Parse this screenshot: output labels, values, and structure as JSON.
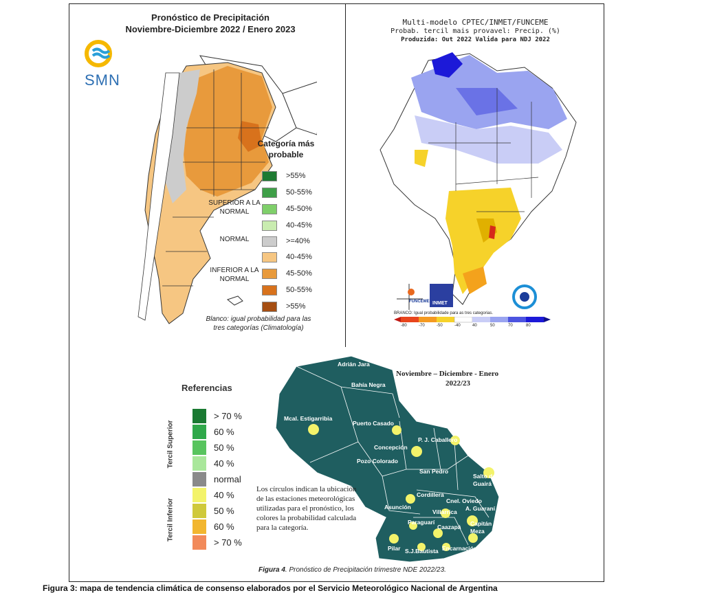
{
  "argentina": {
    "title_line1": "Pronóstico de Precipitación",
    "title_line2": "Noviembre-Diciembre 2022 / Enero 2023",
    "logo_text": "SMN",
    "legend_title": "Categoría más probable",
    "group_superior": "SUPERIOR A LA NORMAL",
    "group_normal": "NORMAL",
    "group_inferior": "INFERIOR A LA NORMAL",
    "legend": [
      {
        "label": ">55%",
        "color": "#1e7a32"
      },
      {
        "label": "50-55%",
        "color": "#3f9f48"
      },
      {
        "label": "45-50%",
        "color": "#7fcf6a"
      },
      {
        "label": "40-45%",
        "color": "#c9ecb0"
      },
      {
        "label": ">=40%",
        "color": "#cccccc"
      },
      {
        "label": "40-45%",
        "color": "#f6c682"
      },
      {
        "label": "45-50%",
        "color": "#e89a3c"
      },
      {
        "label": "50-55%",
        "color": "#d8721c"
      },
      {
        "label": ">55%",
        "color": "#a54e12"
      }
    ],
    "note": "Blanco: igual probabilidad para las tres categorías (Climatología)"
  },
  "brasil": {
    "header_line1": "Multi-modelo CPTEC/INMET/FUNCEME",
    "header_line2": "Probab. tercil mais provavel: Precip. (%)",
    "header_line3": "Produzida: Out 2022   Valida para NDJ 2022",
    "logo_funceme": "FUNCEME",
    "logo_inmet": "INMET",
    "colorbar_note": "BRANCO: Igual probabilidade para as tres categorias.",
    "colorbar_ticks": [
      "-80",
      "-70",
      "-50",
      "-40",
      "40",
      "50",
      "70",
      "80"
    ]
  },
  "paraguay": {
    "legend_title": "Referencias",
    "group_superior": "Tercil Superior",
    "group_inferior": "Tercil Inferior",
    "legend": [
      {
        "label": "> 70 %",
        "color": "#1a7a32"
      },
      {
        "label": "60 %",
        "color": "#2fa84a"
      },
      {
        "label": "50 %",
        "color": "#58c45e"
      },
      {
        "label": "40 %",
        "color": "#a9e79b"
      },
      {
        "label": "normal",
        "color": "#8a8a8a"
      },
      {
        "label": "40  %",
        "color": "#f3f36a"
      },
      {
        "label": "50  %",
        "color": "#cfc93b"
      },
      {
        "label": "60 %",
        "color": "#f2b62f"
      },
      {
        "label": "> 70 %",
        "color": "#f28a5a"
      }
    ],
    "map_title_line1": "Noviembre – Diciembre - Enero",
    "map_title_line2": "2022/23",
    "cities": {
      "adrian_jara": "Adrián Jara",
      "bahia_negra": "Bahía Negra",
      "mcal": "Mcal. Estigarribia",
      "puerto_casado": "Puerto Casado",
      "pj_caballero": "P. J. Caballero",
      "concepcion": "Concepción",
      "pozo_colorado": "Pozo Colorado",
      "san_pedro": "San Pedro",
      "salto_del_guaira": "Salto del Guairá",
      "cordillera": "Cordillera",
      "asuncion": "Asunción",
      "cnel_oviedo": "Cnel. Oviedo",
      "a_guarani": "A. Guaraní",
      "villarrica": "Villarrica",
      "paraguari": "Paraguarí",
      "caazapa": "Caazapá",
      "capitan_meza": "Capitán Meza",
      "pilar": "Pilar",
      "sj_bautista": "S.J.Bautista",
      "encarnacion": "Encarnación"
    },
    "note": "Los círculos indican la ubicación de las estaciones meteorológicas utilizadas para el pronóstico, los colores la probabilidad calculada para la categoría.",
    "caption_label": "Figura 4",
    "caption_text": ". Pronóstico de Precipitación trimestre NDE 2022/23."
  },
  "figure_caption": "Figura 3: mapa de tendencia climática de consenso elaborados por el Servicio Meteorológico Nacional de Argentina"
}
